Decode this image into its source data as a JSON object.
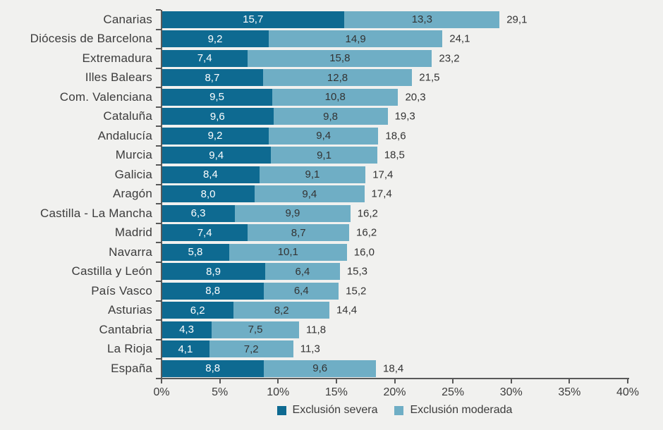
{
  "background_color": "#f1f1ef",
  "axis_color": "#595959",
  "text_color": "#3c3c3c",
  "chart_data": {
    "type": "bar",
    "orientation": "horizontal",
    "stacked": true,
    "categories": [
      "Canarias",
      "Diócesis de Barcelona",
      "Extremadura",
      "Illes Balears",
      "Com. Valenciana",
      "Cataluña",
      "Andalucía",
      "Murcia",
      "Galicia",
      "Aragón",
      "Castilla - La Mancha",
      "Madrid",
      "Navarra",
      "Castilla y León",
      "País Vasco",
      "Asturias",
      "Cantabria",
      "La Rioja",
      "España"
    ],
    "series": [
      {
        "name": "Exclusión severa",
        "color": "#0e6a91",
        "values": [
          15.7,
          9.2,
          7.4,
          8.7,
          9.5,
          9.6,
          9.2,
          9.4,
          8.4,
          8.0,
          6.3,
          7.4,
          5.8,
          8.9,
          8.8,
          6.2,
          4.3,
          4.1,
          8.8
        ]
      },
      {
        "name": "Exclusión moderada",
        "color": "#6faec5",
        "values": [
          13.3,
          14.9,
          15.8,
          12.8,
          10.8,
          9.8,
          9.4,
          9.1,
          9.1,
          9.4,
          9.9,
          8.7,
          10.1,
          6.4,
          6.4,
          8.2,
          7.5,
          7.2,
          9.6
        ]
      }
    ],
    "totals": [
      29.1,
      24.1,
      23.2,
      21.5,
      20.3,
      19.3,
      18.6,
      18.5,
      17.4,
      17.4,
      16.2,
      16.2,
      16.0,
      15.3,
      15.2,
      14.4,
      11.8,
      11.3,
      18.4
    ],
    "decimal_separator": ",",
    "xlim": [
      0,
      40
    ],
    "x_ticks": [
      0,
      5,
      10,
      15,
      20,
      25,
      30,
      35,
      40
    ],
    "x_tick_labels": [
      "0%",
      "5%",
      "10%",
      "15%",
      "20%",
      "25%",
      "30%",
      "35%",
      "40%"
    ],
    "grid": false,
    "legend_position": "bottom"
  }
}
